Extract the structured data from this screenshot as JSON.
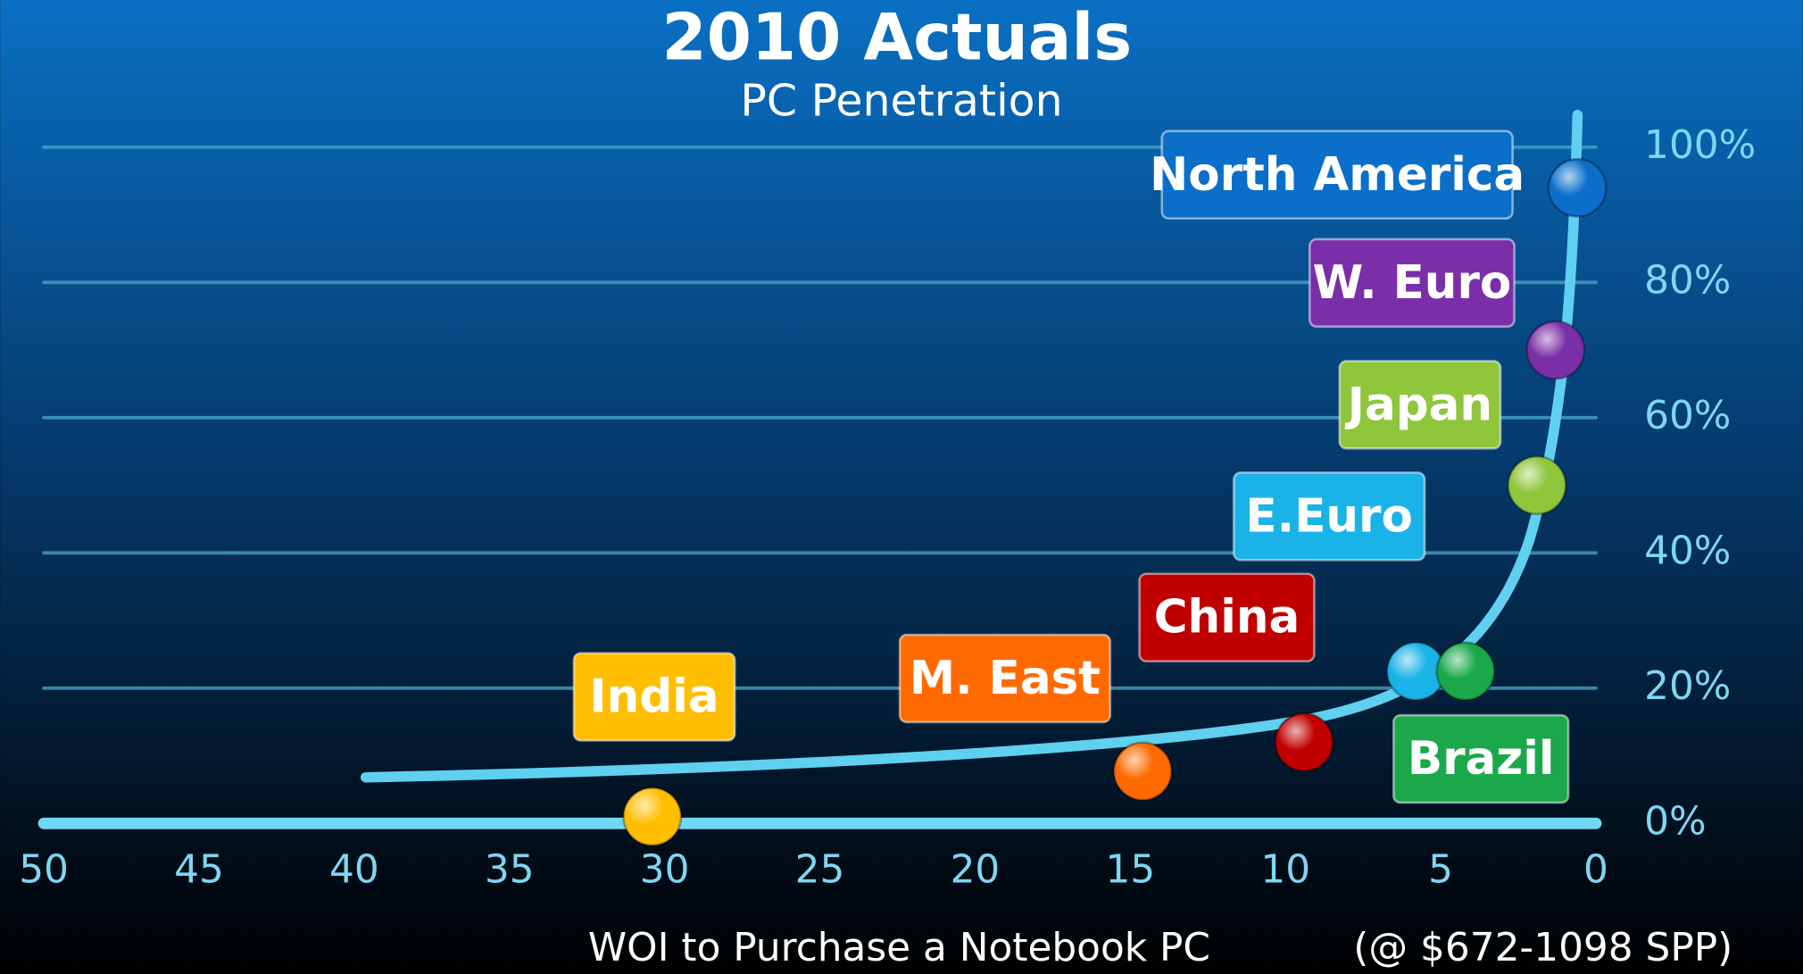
{
  "chart_data": {
    "type": "scatter",
    "title": "2010 Actuals",
    "subtitle": "PC Penetration",
    "x_label": "WOI to Purchase a Notebook PC",
    "note": "(@ $672-1098 SPP)",
    "xlim": [
      50,
      0
    ],
    "xticks": [
      50,
      45,
      40,
      35,
      30,
      25,
      20,
      15,
      10,
      5,
      0
    ],
    "ylim": [
      0,
      100
    ],
    "yticks": [
      {
        "value": 0,
        "label": "0%"
      },
      {
        "value": 20,
        "label": "20%"
      },
      {
        "value": 40,
        "label": "40%"
      },
      {
        "value": 60,
        "label": "60%"
      },
      {
        "value": 80,
        "label": "80%"
      },
      {
        "value": 100,
        "label": "100%"
      }
    ],
    "grid": true,
    "series": [
      {
        "name": "North America",
        "color": "#0b6fc9",
        "x": [
          0.6
        ],
        "values": [
          94
        ]
      },
      {
        "name": "W. Euro",
        "color": "#7a2fa8",
        "x": [
          1.3
        ],
        "values": [
          70
        ]
      },
      {
        "name": "Japan",
        "color": "#8fc63c",
        "x": [
          1.9
        ],
        "values": [
          50
        ]
      },
      {
        "name": "E.Euro",
        "color": "#1ab3e8",
        "x": [
          5.8
        ],
        "values": [
          22.5
        ]
      },
      {
        "name": "China",
        "color": "#c00000",
        "x": [
          9.4
        ],
        "values": [
          12
        ]
      },
      {
        "name": "M. East",
        "color": "#ff6a00",
        "x": [
          14.6
        ],
        "values": [
          7.7
        ]
      },
      {
        "name": "India",
        "color": "#ffbf00",
        "x": [
          30.4
        ],
        "values": [
          1
        ]
      },
      {
        "name": "Brazil",
        "color": "#1aa84a",
        "x": [
          4.2
        ],
        "values": [
          22.5
        ]
      }
    ]
  }
}
